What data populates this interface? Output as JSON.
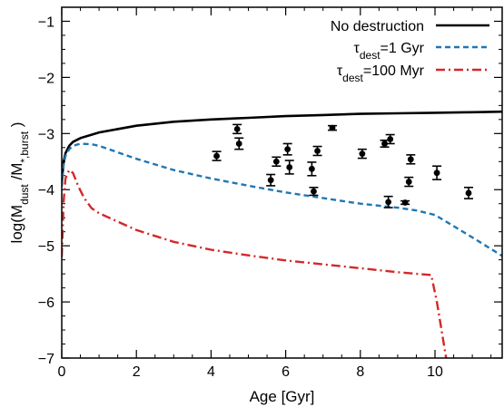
{
  "chart_data": {
    "type": "scatter",
    "title": "",
    "xlabel": "Age [Gyr]",
    "ylabel": {
      "main": "log(M",
      "sub1": "dust",
      "mid": " /M",
      "sub2": "*,burst",
      "end": " )"
    },
    "xlim": [
      0,
      11.8
    ],
    "ylim": [
      -7,
      -0.75
    ],
    "x_ticks": [
      0,
      2,
      4,
      6,
      8,
      10
    ],
    "x_tick_labels": [
      "0",
      "2",
      "4",
      "6",
      "8",
      "10"
    ],
    "y_ticks": [
      -1,
      -2,
      -3,
      -4,
      -5,
      -6,
      -7
    ],
    "y_tick_labels": [
      "−1",
      "−2",
      "−3",
      "−4",
      "−5",
      "−6",
      "−7"
    ],
    "grid": false,
    "legend_position": "top-right",
    "series": [
      {
        "name": "No destruction",
        "legend": {
          "main": "No destruction",
          "sub": "",
          "rest": ""
        },
        "style": "solid",
        "color": "#000000",
        "x": [
          0.0,
          0.05,
          0.1,
          0.2,
          0.3,
          0.5,
          0.8,
          1.0,
          2.0,
          3.0,
          4.0,
          5.0,
          6.0,
          7.0,
          8.0,
          9.0,
          10.0,
          11.0,
          11.8
        ],
        "y": [
          -3.85,
          -3.5,
          -3.35,
          -3.22,
          -3.15,
          -3.08,
          -3.02,
          -2.98,
          -2.86,
          -2.79,
          -2.75,
          -2.72,
          -2.69,
          -2.67,
          -2.65,
          -2.64,
          -2.63,
          -2.62,
          -2.61
        ]
      },
      {
        "name": "τdest=1 Gyr",
        "legend": {
          "main": "τ",
          "sub": "dest",
          "rest": "=1 Gyr"
        },
        "style": "dashed",
        "color": "#1f77b4",
        "x": [
          0.0,
          0.05,
          0.1,
          0.2,
          0.3,
          0.5,
          0.8,
          1.0,
          2.0,
          3.0,
          4.0,
          5.0,
          6.0,
          7.0,
          8.0,
          9.0,
          9.5,
          10.0,
          10.5,
          11.0,
          11.8
        ],
        "y": [
          -3.95,
          -3.55,
          -3.4,
          -3.28,
          -3.22,
          -3.18,
          -3.19,
          -3.22,
          -3.45,
          -3.65,
          -3.8,
          -3.93,
          -4.05,
          -4.15,
          -4.25,
          -4.32,
          -4.37,
          -4.45,
          -4.65,
          -4.85,
          -5.18
        ]
      },
      {
        "name": "τdest=100 Myr",
        "legend": {
          "main": "τ",
          "sub": "dest",
          "rest": "=100 Myr"
        },
        "style": "dashdot",
        "color": "#d62728",
        "x": [
          0.0,
          0.05,
          0.1,
          0.2,
          0.3,
          0.45,
          0.6,
          0.8,
          1.0,
          2.0,
          3.0,
          4.0,
          5.0,
          6.0,
          7.0,
          8.0,
          9.0,
          9.9,
          10.05,
          10.2,
          10.3
        ],
        "y": [
          -5.2,
          -4.2,
          -3.8,
          -3.65,
          -3.7,
          -3.95,
          -4.15,
          -4.33,
          -4.42,
          -4.72,
          -4.93,
          -5.07,
          -5.17,
          -5.26,
          -5.33,
          -5.4,
          -5.47,
          -5.52,
          -6.0,
          -6.6,
          -7.0
        ]
      }
    ],
    "points": {
      "name": "",
      "x": [
        4.15,
        4.7,
        4.75,
        5.6,
        5.75,
        6.05,
        6.1,
        6.7,
        6.75,
        6.85,
        7.25,
        8.05,
        8.65,
        8.75,
        8.8,
        9.2,
        9.3,
        9.35,
        10.05,
        10.9
      ],
      "y": [
        -3.4,
        -2.92,
        -3.18,
        -3.83,
        -3.5,
        -3.28,
        -3.6,
        -3.63,
        -4.03,
        -3.31,
        -2.9,
        -3.36,
        -3.18,
        -4.22,
        -3.1,
        -4.23,
        -3.86,
        -3.46,
        -3.7,
        -4.06
      ],
      "yerr": [
        0.08,
        0.08,
        0.1,
        0.1,
        0.08,
        0.1,
        0.12,
        0.12,
        0.07,
        0.08,
        0.04,
        0.08,
        0.06,
        0.1,
        0.08,
        0.03,
        0.08,
        0.08,
        0.12,
        0.1
      ]
    }
  }
}
